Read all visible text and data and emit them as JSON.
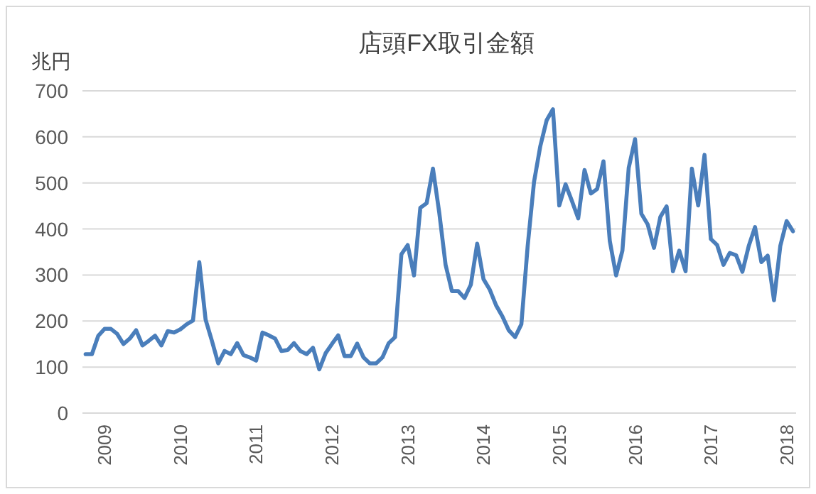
{
  "chart_data": {
    "type": "line",
    "title": "店頭FX取引金額",
    "ylabel": "兆円",
    "categories": [
      null,
      null,
      null,
      "2009",
      null,
      null,
      null,
      null,
      null,
      null,
      null,
      null,
      null,
      null,
      null,
      "2010",
      null,
      null,
      null,
      null,
      null,
      null,
      null,
      null,
      null,
      null,
      null,
      "2011",
      null,
      null,
      null,
      null,
      null,
      null,
      null,
      null,
      null,
      null,
      null,
      "2012",
      null,
      null,
      null,
      null,
      null,
      null,
      null,
      null,
      null,
      null,
      null,
      "2013",
      null,
      null,
      null,
      null,
      null,
      null,
      null,
      null,
      null,
      null,
      null,
      "2014",
      null,
      null,
      null,
      null,
      null,
      null,
      null,
      null,
      null,
      null,
      null,
      "2015",
      null,
      null,
      null,
      null,
      null,
      null,
      null,
      null,
      null,
      null,
      null,
      "2016",
      null,
      null,
      null,
      null,
      null,
      null,
      null,
      null,
      null,
      null,
      null,
      "2017",
      null,
      null,
      null,
      null,
      null,
      null,
      null,
      null,
      null,
      null,
      null,
      "2018",
      null
    ],
    "values": [
      128,
      128,
      168,
      183,
      183,
      172,
      150,
      162,
      180,
      147,
      157,
      168,
      147,
      178,
      175,
      182,
      193,
      201,
      328,
      203,
      157,
      108,
      135,
      128,
      152,
      126,
      121,
      114,
      175,
      169,
      162,
      135,
      137,
      152,
      135,
      128,
      142,
      95,
      130,
      150,
      169,
      124,
      124,
      151,
      121,
      108,
      108,
      121,
      152,
      165,
      345,
      365,
      299,
      446,
      456,
      531,
      435,
      322,
      265,
      265,
      250,
      279,
      368,
      291,
      268,
      234,
      210,
      180,
      165,
      193,
      363,
      502,
      580,
      636,
      660,
      451,
      497,
      461,
      423,
      528,
      477,
      487,
      547,
      374,
      299,
      353,
      533,
      595,
      433,
      410,
      359,
      426,
      449,
      308,
      353,
      308,
      531,
      451,
      561,
      378,
      365,
      322,
      348,
      343,
      307,
      363,
      404,
      328,
      342,
      245,
      363,
      417,
      395
    ],
    "color": "#4a7ebb",
    "ylim": [
      0,
      700
    ],
    "yticks": [
      0,
      100,
      200,
      300,
      400,
      500,
      600,
      700
    ],
    "grid": "y"
  }
}
